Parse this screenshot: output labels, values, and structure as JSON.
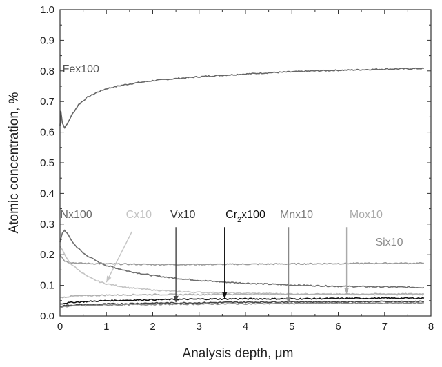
{
  "chart_data": {
    "type": "line",
    "xlabel": "Analysis depth, μm",
    "ylabel": "Atomic concentration, %",
    "xlim": [
      0,
      8
    ],
    "ylim": [
      0,
      1.0
    ],
    "x_ticks": [
      "0",
      "1",
      "2",
      "3",
      "4",
      "5",
      "6",
      "7",
      "8"
    ],
    "y_ticks": [
      "0.0",
      "0.1",
      "0.2",
      "0.3",
      "0.4",
      "0.5",
      "0.6",
      "0.7",
      "0.8",
      "0.9",
      "1.0"
    ],
    "grid": false,
    "legend": "inline labels with arrows",
    "series": [
      {
        "name": "Fex100",
        "color": "#666666",
        "points": [
          [
            0,
            0.62
          ],
          [
            0.02,
            0.67
          ],
          [
            0.05,
            0.63
          ],
          [
            0.1,
            0.615
          ],
          [
            0.15,
            0.625
          ],
          [
            0.25,
            0.655
          ],
          [
            0.4,
            0.69
          ],
          [
            0.6,
            0.715
          ],
          [
            0.8,
            0.73
          ],
          [
            1.0,
            0.742
          ],
          [
            1.3,
            0.752
          ],
          [
            1.6,
            0.76
          ],
          [
            2.0,
            0.768
          ],
          [
            2.5,
            0.775
          ],
          [
            3.0,
            0.781
          ],
          [
            3.5,
            0.786
          ],
          [
            4.0,
            0.79
          ],
          [
            4.5,
            0.794
          ],
          [
            5.0,
            0.797
          ],
          [
            5.5,
            0.8
          ],
          [
            6.0,
            0.802
          ],
          [
            6.5,
            0.804
          ],
          [
            7.0,
            0.806
          ],
          [
            7.5,
            0.807
          ],
          [
            7.85,
            0.808
          ]
        ]
      },
      {
        "name": "Nx100",
        "color": "#6e6e6e",
        "points": [
          [
            0,
            0.24
          ],
          [
            0.05,
            0.27
          ],
          [
            0.1,
            0.28
          ],
          [
            0.15,
            0.27
          ],
          [
            0.3,
            0.235
          ],
          [
            0.5,
            0.205
          ],
          [
            0.8,
            0.178
          ],
          [
            1.0,
            0.165
          ],
          [
            1.5,
            0.145
          ],
          [
            2.0,
            0.132
          ],
          [
            2.5,
            0.123
          ],
          [
            3.0,
            0.116
          ],
          [
            3.5,
            0.111
          ],
          [
            4.0,
            0.107
          ],
          [
            4.5,
            0.104
          ],
          [
            5.0,
            0.101
          ],
          [
            5.5,
            0.099
          ],
          [
            6.0,
            0.097
          ],
          [
            6.5,
            0.096
          ],
          [
            7.0,
            0.095
          ],
          [
            7.5,
            0.094
          ],
          [
            7.85,
            0.093
          ]
        ]
      },
      {
        "name": "Six10",
        "color": "#9a9a9a",
        "points": [
          [
            0,
            0.2
          ],
          [
            0.05,
            0.19
          ],
          [
            0.1,
            0.18
          ],
          [
            0.2,
            0.175
          ],
          [
            0.4,
            0.172
          ],
          [
            1,
            0.17
          ],
          [
            2,
            0.168
          ],
          [
            3,
            0.168
          ],
          [
            4,
            0.169
          ],
          [
            5,
            0.17
          ],
          [
            6,
            0.171
          ],
          [
            7,
            0.172
          ],
          [
            7.85,
            0.172
          ]
        ]
      },
      {
        "name": "Cx10",
        "color": "#c4c4c4",
        "points": [
          [
            0,
            0.23
          ],
          [
            0.05,
            0.215
          ],
          [
            0.1,
            0.2
          ],
          [
            0.2,
            0.175
          ],
          [
            0.4,
            0.15
          ],
          [
            0.6,
            0.128
          ],
          [
            0.8,
            0.114
          ],
          [
            1.0,
            0.105
          ],
          [
            1.5,
            0.092
          ],
          [
            2.0,
            0.085
          ],
          [
            2.5,
            0.08
          ],
          [
            3.0,
            0.077
          ],
          [
            4.0,
            0.074
          ],
          [
            5.0,
            0.072
          ],
          [
            6.0,
            0.071
          ],
          [
            7.0,
            0.07
          ],
          [
            7.85,
            0.07
          ]
        ]
      },
      {
        "name": "Mox10",
        "color": "#b0b0b0",
        "points": [
          [
            0,
            0.06
          ],
          [
            0.3,
            0.065
          ],
          [
            1,
            0.068
          ],
          [
            2,
            0.07
          ],
          [
            3,
            0.07
          ],
          [
            4,
            0.071
          ],
          [
            5,
            0.071
          ],
          [
            6,
            0.071
          ],
          [
            7,
            0.072
          ],
          [
            7.85,
            0.072
          ]
        ]
      },
      {
        "name": "Cr2x100",
        "color": "#111111",
        "points": [
          [
            0,
            0.04
          ],
          [
            0.3,
            0.045
          ],
          [
            1,
            0.05
          ],
          [
            2,
            0.053
          ],
          [
            3,
            0.055
          ],
          [
            4,
            0.056
          ],
          [
            5,
            0.056
          ],
          [
            6,
            0.057
          ],
          [
            7,
            0.058
          ],
          [
            7.85,
            0.058
          ]
        ]
      },
      {
        "name": "Vx10",
        "color": "#444444",
        "points": [
          [
            0,
            0.033
          ],
          [
            0.3,
            0.036
          ],
          [
            1,
            0.039
          ],
          [
            2,
            0.042
          ],
          [
            3,
            0.043
          ],
          [
            4,
            0.045
          ],
          [
            5,
            0.046
          ],
          [
            6,
            0.046
          ],
          [
            7,
            0.047
          ],
          [
            7.85,
            0.047
          ]
        ]
      },
      {
        "name": "Mnx10",
        "color": "#888888",
        "points": [
          [
            0,
            0.03
          ],
          [
            0.3,
            0.033
          ],
          [
            1,
            0.036
          ],
          [
            2,
            0.038
          ],
          [
            3,
            0.039
          ],
          [
            4,
            0.04
          ],
          [
            5,
            0.041
          ],
          [
            6,
            0.042
          ],
          [
            7,
            0.042
          ],
          [
            7.85,
            0.043
          ]
        ]
      }
    ],
    "labels": [
      {
        "text": "Fex100",
        "color": "#555555",
        "at": [
          0.45,
          0.795
        ]
      },
      {
        "text": "Six10",
        "color": "#8a8a8a",
        "at": [
          7.1,
          0.23
        ]
      },
      {
        "text": "Nx100",
        "color": "#6a6a6a",
        "at": [
          0.35,
          0.32
        ]
      },
      {
        "text": "Cx10",
        "color": "#c4c4c4",
        "at": [
          1.7,
          0.32
        ]
      },
      {
        "text": "Vx10",
        "color": "#333333",
        "at": [
          2.65,
          0.32
        ]
      },
      {
        "text": "Cr",
        "sub": "2",
        "suffix": "x100",
        "color": "#111111",
        "at": [
          4.0,
          0.32
        ]
      },
      {
        "text": "Mnx10",
        "color": "#7a7a7a",
        "at": [
          5.1,
          0.32
        ]
      },
      {
        "text": "Mox10",
        "color": "#aaaaaa",
        "at": [
          6.6,
          0.32
        ]
      }
    ],
    "arrows": [
      {
        "color": "#c4c4c4",
        "from": [
          1.55,
          0.275
        ],
        "to": [
          1.0,
          0.11
        ]
      },
      {
        "color": "#444444",
        "from": [
          2.5,
          0.29
        ],
        "to": [
          2.5,
          0.045
        ]
      },
      {
        "color": "#111111",
        "from": [
          3.55,
          0.29
        ],
        "to": [
          3.55,
          0.056
        ]
      },
      {
        "color": "#888888",
        "from": [
          4.93,
          0.29
        ],
        "to": [
          4.93,
          0.04
        ]
      },
      {
        "color": "#aaaaaa",
        "from": [
          6.18,
          0.29
        ],
        "to": [
          6.18,
          0.072
        ]
      }
    ]
  }
}
